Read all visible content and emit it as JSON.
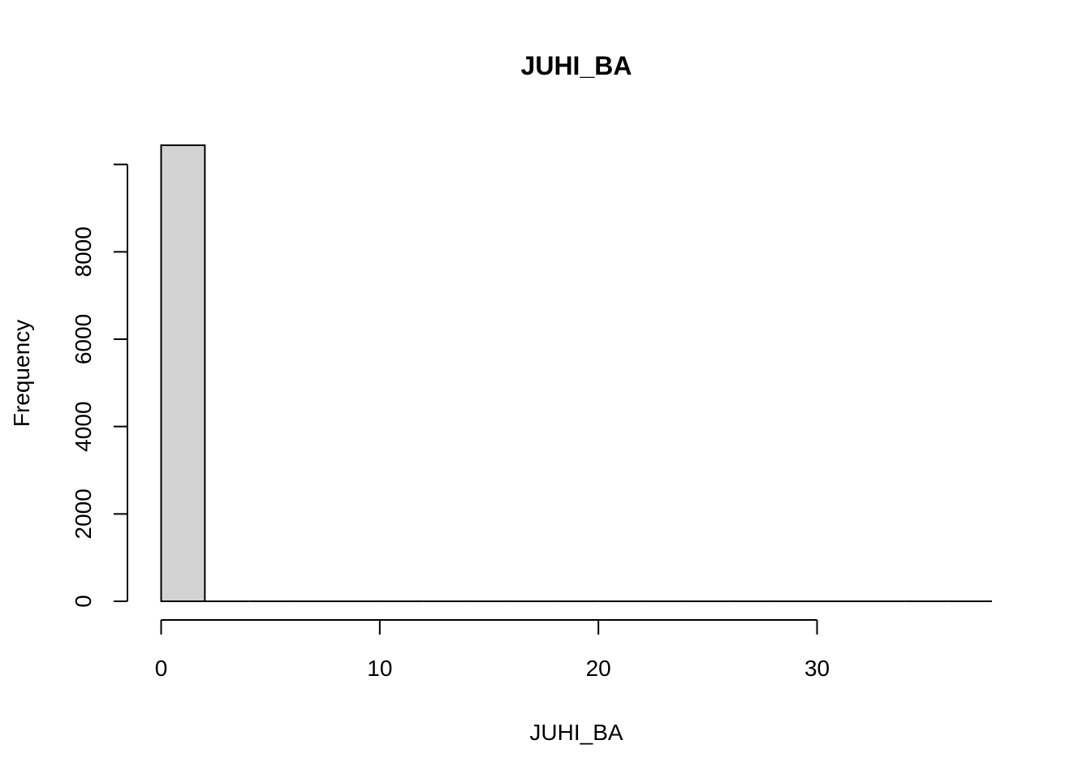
{
  "chart_data": {
    "type": "bar",
    "title": "JUHI_BA",
    "xlabel": "JUHI_BA",
    "ylabel": "Frequency",
    "bins": [
      {
        "x0": 0,
        "x1": 2,
        "count": 10440
      },
      {
        "x0": 2,
        "x1": 4,
        "count": 0
      },
      {
        "x0": 4,
        "x1": 6,
        "count": 0
      },
      {
        "x0": 6,
        "x1": 8,
        "count": 0
      },
      {
        "x0": 8,
        "x1": 10,
        "count": 0
      },
      {
        "x0": 10,
        "x1": 12,
        "count": 0
      },
      {
        "x0": 12,
        "x1": 14,
        "count": 0
      },
      {
        "x0": 14,
        "x1": 16,
        "count": 0
      },
      {
        "x0": 16,
        "x1": 18,
        "count": 0
      },
      {
        "x0": 18,
        "x1": 20,
        "count": 0
      },
      {
        "x0": 20,
        "x1": 22,
        "count": 0
      },
      {
        "x0": 22,
        "x1": 24,
        "count": 0
      },
      {
        "x0": 24,
        "x1": 26,
        "count": 0
      },
      {
        "x0": 26,
        "x1": 28,
        "count": 0
      },
      {
        "x0": 28,
        "x1": 30,
        "count": 0
      },
      {
        "x0": 30,
        "x1": 32,
        "count": 0
      },
      {
        "x0": 32,
        "x1": 34,
        "count": 0
      },
      {
        "x0": 34,
        "x1": 36,
        "count": 0
      },
      {
        "x0": 36,
        "x1": 38,
        "count": 0
      }
    ],
    "xlim": [
      0,
      38
    ],
    "ylim": [
      0,
      10440
    ],
    "x_ticks": [
      0,
      10,
      20,
      30
    ],
    "x_tick_labels": [
      "0",
      "10",
      "20",
      "30"
    ],
    "y_ticks": [
      0,
      2000,
      4000,
      6000,
      8000,
      10000
    ],
    "y_tick_labels": [
      "0",
      "2000",
      "4000",
      "6000",
      "8000",
      ""
    ],
    "grid": false,
    "legend": "none",
    "bar_fill": "#d3d3d3",
    "bar_stroke": "#000000"
  }
}
